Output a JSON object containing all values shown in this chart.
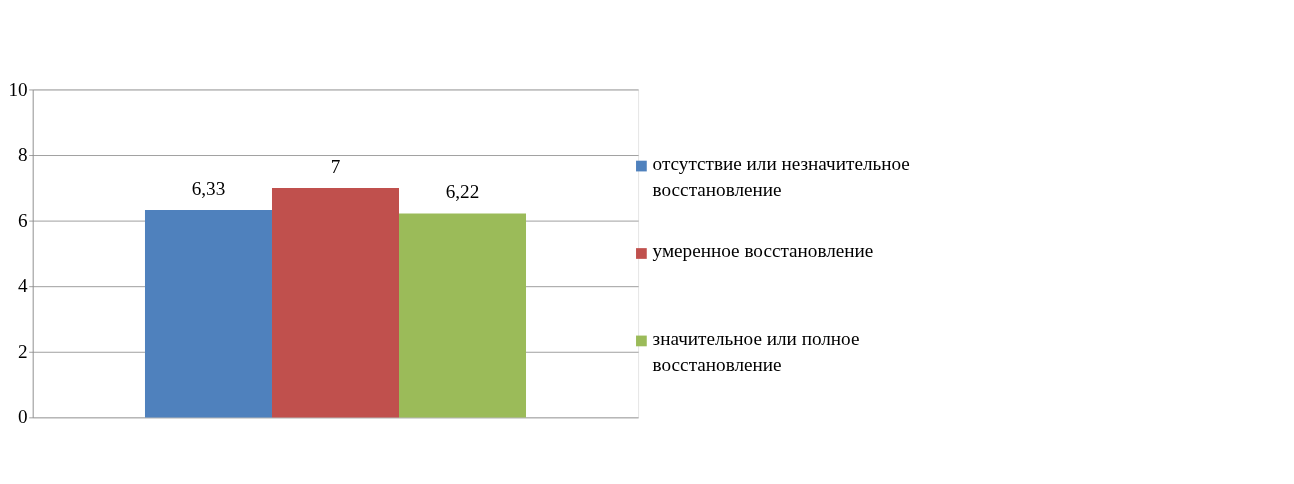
{
  "chart_data": {
    "type": "bar",
    "categories": [
      null
    ],
    "series": [
      {
        "name": "отсутствие или незначительное восстановление",
        "color": "#4f81bd",
        "values": [
          6.33
        ],
        "value_labels": [
          "6,33"
        ]
      },
      {
        "name": "умеренное восстановление",
        "color": "#c0504d",
        "values": [
          7
        ],
        "value_labels": [
          "7"
        ]
      },
      {
        "name": "значительное или полное восстановление",
        "color": "#9bbb59",
        "values": [
          6.22
        ],
        "value_labels": [
          "6,22"
        ]
      }
    ],
    "ylim": [
      0,
      10
    ],
    "yticks": [
      0,
      2,
      4,
      6,
      8,
      10
    ],
    "grid": "y",
    "legend": "right"
  }
}
